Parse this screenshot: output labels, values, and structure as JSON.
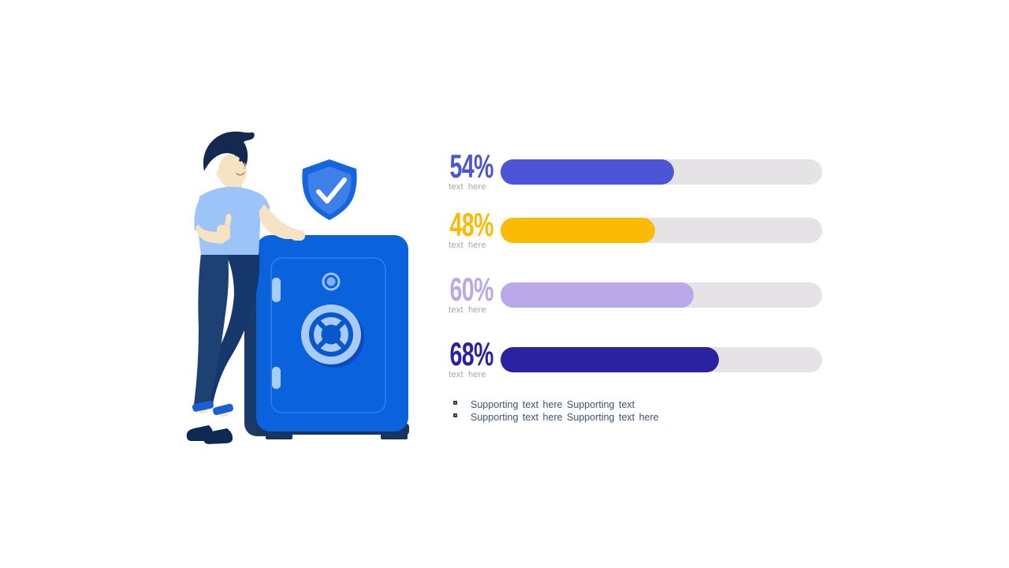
{
  "slide": {
    "background": "#FFFFFF"
  },
  "illustration": {
    "alt": "man giving thumbs up leaning on a blue safe with a shield checkmark badge",
    "colors": {
      "safe_blue": "#0A62DC",
      "safe_dark": "#1B3A67",
      "safe_light_blue": "#A9CBF8",
      "shield_outer": "#1566DE",
      "shield_inner": "#3F80E8",
      "hair_navy": "#13294F",
      "skin": "#F6E3C3",
      "shirt_blue": "#9CC4F8",
      "pants_navy": "#1D4173",
      "cuff_blue": "#1A5FD4",
      "shoe_navy": "#0D2A52"
    }
  },
  "stats": [
    {
      "percent": "54%",
      "value": 54,
      "color": "#4B55D6",
      "label": "text here"
    },
    {
      "percent": "48%",
      "value": 48,
      "color": "#FBBB04",
      "label": "text here"
    },
    {
      "percent": "60%",
      "value": 60,
      "color": "#B9A9E9",
      "label": "text here"
    },
    {
      "percent": "68%",
      "value": 68,
      "color": "#2B22A2",
      "label": "text here"
    }
  ],
  "track_color": "#E5E3E5",
  "bullets": [
    "Supporting text here Supporting text",
    "Supporting text here Supporting text here"
  ],
  "chart_data": {
    "type": "bar",
    "orientation": "horizontal",
    "categories": [
      "text here",
      "text here",
      "text here",
      "text here"
    ],
    "values": [
      54,
      48,
      60,
      68
    ],
    "unit": "%",
    "xlim": [
      0,
      100
    ],
    "title": "",
    "xlabel": "",
    "ylabel": "",
    "grid": false,
    "legend": false,
    "bar_colors": [
      "#4B55D6",
      "#FBBB04",
      "#B9A9E9",
      "#2B22A2"
    ],
    "track_color": "#E5E3E5",
    "data_labels": [
      "54%",
      "48%",
      "60%",
      "68%"
    ]
  }
}
